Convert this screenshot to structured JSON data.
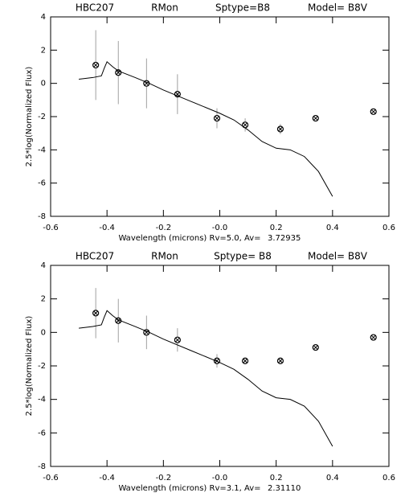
{
  "chart_data": [
    {
      "type": "scatter",
      "title": [
        "HBC207",
        "RMon",
        "Sptype=B8",
        "Model= B8V"
      ],
      "x_label": "Wavelength (microns) Rv=5.0, Av=",
      "annotation": "3.72935",
      "y_label": "2.5*log(Normalized Flux)",
      "xlim": [
        -0.6,
        0.6
      ],
      "ylim": [
        -8,
        4
      ],
      "xticks": [
        -0.6,
        -0.4,
        -0.2,
        {
          "value": 0,
          "label": "-0.0"
        },
        0.2,
        0.4,
        0.6
      ],
      "yticks": [
        -8,
        -6,
        -4,
        -2,
        0,
        2,
        4
      ],
      "series": [
        {
          "type": "scatter",
          "color": "#000000",
          "x": [
            -0.44,
            -0.36,
            -0.26,
            -0.15,
            -0.01,
            0.09,
            0.215,
            0.34,
            0.545
          ],
          "values": [
            1.1,
            0.65,
            0.0,
            -0.65,
            -2.1,
            -2.5,
            -2.75,
            -2.1,
            -1.7
          ],
          "errors": [
            2.1,
            1.9,
            1.5,
            1.2,
            0.6,
            0.4,
            0.3,
            0.1,
            0.1
          ]
        },
        {
          "type": "line",
          "color": "#000000",
          "x": [
            -0.5,
            -0.45,
            -0.42,
            -0.41,
            -0.4,
            -0.38,
            -0.36,
            -0.3,
            -0.25,
            -0.2,
            -0.1,
            0.0,
            0.05,
            0.1,
            0.15,
            0.2,
            0.25,
            0.3,
            0.35,
            0.4
          ],
          "values": [
            0.25,
            0.35,
            0.45,
            0.9,
            1.3,
            1.0,
            0.75,
            0.35,
            0.0,
            -0.4,
            -1.1,
            -1.8,
            -2.2,
            -2.8,
            -3.5,
            -3.9,
            -4.0,
            -4.4,
            -5.3,
            -6.8
          ]
        }
      ]
    },
    {
      "type": "scatter",
      "title": [
        "HBC207",
        "RMon",
        "Sptype= B8",
        "Model= B8V"
      ],
      "x_label": "Wavelength (microns) Rv=3.1,  Av=",
      "annotation": "2.31110",
      "y_label": "2.5*log(Normalized Flux)",
      "xlim": [
        -0.6,
        0.6
      ],
      "ylim": [
        -8,
        4
      ],
      "xticks": [
        -0.6,
        -0.4,
        -0.2,
        {
          "value": 0,
          "label": "-0.0"
        },
        0.2,
        0.4,
        0.6
      ],
      "yticks": [
        -8,
        -6,
        -4,
        -2,
        0,
        2,
        4
      ],
      "series": [
        {
          "type": "scatter",
          "color": "#000000",
          "x": [
            -0.44,
            -0.36,
            -0.26,
            -0.15,
            -0.01,
            0.09,
            0.215,
            0.34,
            0.545
          ],
          "values": [
            1.15,
            0.7,
            0.0,
            -0.45,
            -1.7,
            -1.7,
            -1.7,
            -0.9,
            -0.3
          ],
          "errors": [
            1.5,
            1.3,
            1.0,
            0.7,
            0.4,
            0.1,
            0.1,
            0.1,
            0.1
          ]
        },
        {
          "type": "line",
          "color": "#000000",
          "x": [
            -0.5,
            -0.45,
            -0.42,
            -0.41,
            -0.4,
            -0.38,
            -0.36,
            -0.3,
            -0.25,
            -0.2,
            -0.1,
            0.0,
            0.05,
            0.1,
            0.15,
            0.2,
            0.25,
            0.3,
            0.35,
            0.4
          ],
          "values": [
            0.25,
            0.35,
            0.45,
            0.9,
            1.3,
            1.0,
            0.75,
            0.35,
            0.0,
            -0.4,
            -1.1,
            -1.8,
            -2.2,
            -2.8,
            -3.5,
            -3.9,
            -4.0,
            -4.4,
            -5.3,
            -6.8
          ]
        }
      ]
    }
  ]
}
